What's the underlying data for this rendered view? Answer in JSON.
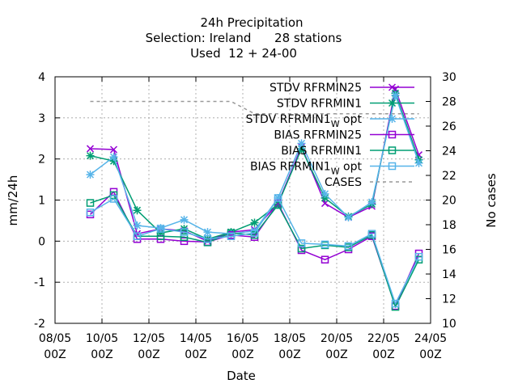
{
  "title_lines": [
    "24h Precipitation",
    "Selection: Ireland      28 stations",
    "Used  12 + 24-00"
  ],
  "chart_data": {
    "type": "line",
    "xlabel": "Date",
    "ylabel": "mm/24h",
    "y2label": "No cases",
    "xlim": [
      0,
      16
    ],
    "ylim": [
      -2,
      4
    ],
    "y2lim": [
      10,
      30
    ],
    "x_ticks": [
      {
        "x": 0,
        "l1": "08/05",
        "l2": "00Z"
      },
      {
        "x": 2,
        "l1": "10/05",
        "l2": "00Z"
      },
      {
        "x": 4,
        "l1": "12/05",
        "l2": "00Z"
      },
      {
        "x": 6,
        "l1": "14/05",
        "l2": "00Z"
      },
      {
        "x": 8,
        "l1": "16/05",
        "l2": "00Z"
      },
      {
        "x": 10,
        "l1": "18/05",
        "l2": "00Z"
      },
      {
        "x": 12,
        "l1": "20/05",
        "l2": "00Z"
      },
      {
        "x": 14,
        "l1": "22/05",
        "l2": "00Z"
      },
      {
        "x": 16,
        "l1": "24/05",
        "l2": "00Z"
      }
    ],
    "y_ticks": [
      "4",
      "3",
      "2",
      "1",
      "0",
      "-1",
      "-2"
    ],
    "y2_ticks": [
      "30",
      "28",
      "26",
      "24",
      "22",
      "20",
      "18",
      "16",
      "14",
      "12",
      "10"
    ],
    "x": [
      1.5,
      2.5,
      3.5,
      4.5,
      5.5,
      6.5,
      7.5,
      8.5,
      9.5,
      10.5,
      11.5,
      12.5,
      13.5,
      14.5,
      15.5
    ],
    "series": [
      {
        "name": "STDV RFRMIN25",
        "color": "#9400d3",
        "marker": "x",
        "values": [
          2.25,
          2.23,
          0.18,
          0.3,
          0.25,
          0.0,
          0.22,
          0.28,
          0.92,
          2.3,
          0.92,
          0.58,
          0.85,
          3.7,
          2.1
        ]
      },
      {
        "name": "STDV RFRMIN1",
        "color": "#009e73",
        "marker": "star",
        "values": [
          2.08,
          1.95,
          0.75,
          0.2,
          0.3,
          0.05,
          0.22,
          0.45,
          0.9,
          2.25,
          1.05,
          0.6,
          0.9,
          3.6,
          1.98
        ]
      },
      {
        "name": "STDV RFRMIN1",
        "name_sub": "W",
        "name_suffix": " opt",
        "color": "#56b4e9",
        "marker": "star",
        "values": [
          1.62,
          2.05,
          0.38,
          0.32,
          0.52,
          0.22,
          0.18,
          0.25,
          1.05,
          2.38,
          1.15,
          0.58,
          0.95,
          3.55,
          1.9
        ]
      },
      {
        "name": "BIAS RFRMIN25",
        "color": "#9400d3",
        "marker": "square",
        "values": [
          0.65,
          1.2,
          0.05,
          0.05,
          0.0,
          -0.02,
          0.15,
          0.1,
          0.92,
          -0.22,
          -0.45,
          -0.2,
          0.12,
          -1.58,
          -0.3
        ]
      },
      {
        "name": "BIAS RFRMIN1",
        "color": "#009e73",
        "marker": "square",
        "values": [
          0.93,
          1.12,
          0.12,
          0.12,
          0.1,
          -0.03,
          0.2,
          0.15,
          0.88,
          -0.18,
          -0.1,
          -0.15,
          0.15,
          -1.6,
          -0.45
        ]
      },
      {
        "name": "BIAS RFRMIN1",
        "name_sub": "W",
        "name_suffix": " opt",
        "color": "#56b4e9",
        "marker": "square",
        "values": [
          0.7,
          1.03,
          0.12,
          0.3,
          0.22,
          0.05,
          0.12,
          0.2,
          1.05,
          -0.05,
          -0.08,
          -0.12,
          0.18,
          -1.52,
          -0.38
        ]
      }
    ],
    "cases": {
      "name": "CASES",
      "color": "#999999",
      "axis": "y2",
      "x": [
        1.5,
        7.5,
        8.5,
        15.5
      ],
      "values": [
        28,
        28,
        27,
        27
      ]
    }
  }
}
